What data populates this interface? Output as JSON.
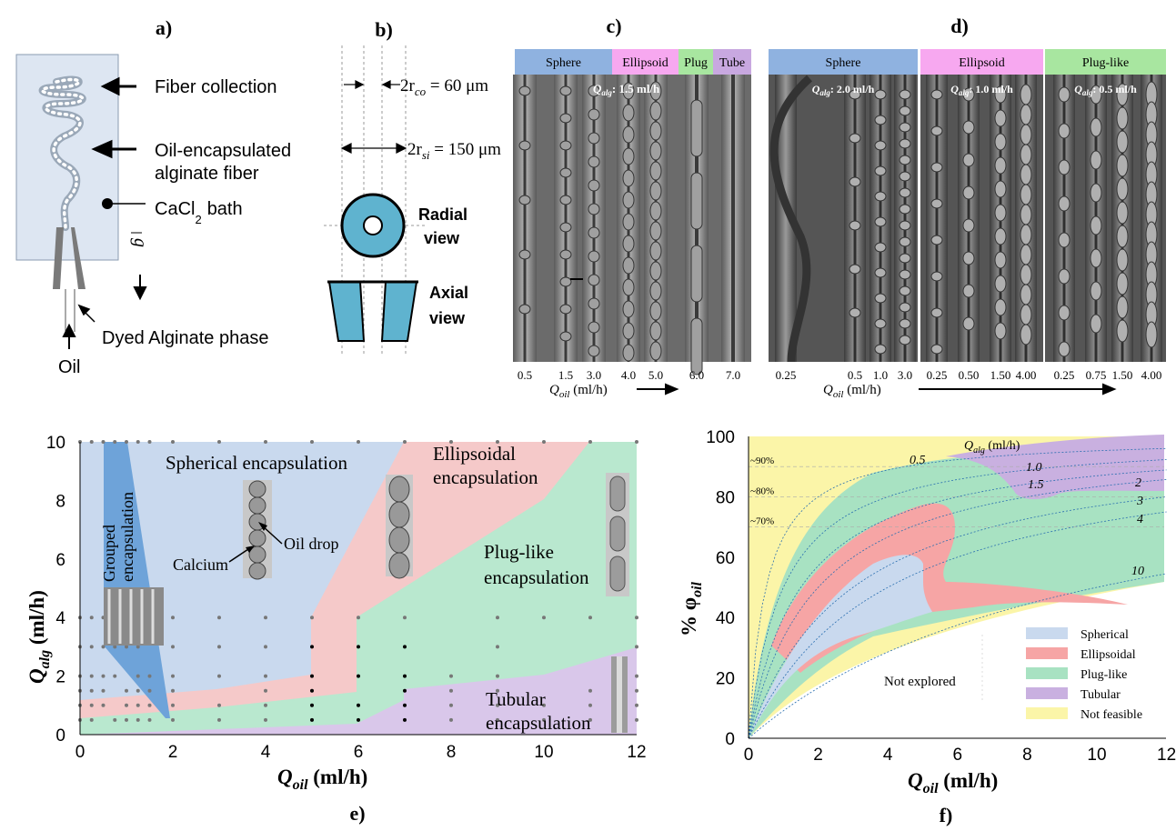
{
  "panels": {
    "a": {
      "letter": "a)",
      "labels": {
        "fiber_collection": "Fiber collection",
        "oil_encap_1": "Oil-encapsulated",
        "oil_encap_2": "alginate fiber",
        "cacl": "CaCl",
        "cacl_sub": "2",
        "cacl_tail": "bath",
        "g": "g",
        "dyed": "Dyed Alginate phase",
        "oil": "Oil"
      },
      "colors": {
        "bath": "#dde6f2",
        "nozzle": "#777777"
      }
    },
    "b": {
      "letter": "b)",
      "labels": {
        "rco_pre": "2r",
        "rco_sub": "co",
        "rco_val": " = 60 μm",
        "rsi_pre": "2r",
        "rsi_sub": "si",
        "rsi_val": " = 150 μm",
        "radial_1": "Radial",
        "radial_2": "view",
        "axial_1": "Axial",
        "axial_2": "view"
      },
      "colors": {
        "fill": "#5fb3cf"
      }
    },
    "c": {
      "letter": "c)",
      "regimes": [
        {
          "label": "Sphere",
          "color": "#8fb2e0"
        },
        {
          "label": "Ellipsoid",
          "color": "#f7a8f0"
        },
        {
          "label": "Plug",
          "color": "#a8e6a0"
        },
        {
          "label": "Tube",
          "color": "#c8a8e0"
        }
      ],
      "qalg_label": "Q",
      "qalg_sub": "alg",
      "qalg_value": ": 1.5 ml/h",
      "ticks": [
        "0.5",
        "1.5",
        "3.0",
        "4.0",
        "5.0",
        "6.0",
        "7.0"
      ],
      "axis_label": "Q",
      "axis_sub": "oil",
      "axis_unit": " (ml/h)"
    },
    "d": {
      "letter": "d)",
      "regimes": [
        {
          "label": "Sphere",
          "color": "#8fb2e0",
          "qalg_value": ": 2.0 ml/h"
        },
        {
          "label": "Ellipsoid",
          "color": "#f7a8f0",
          "qalg_value": ": 1.0 ml/h"
        },
        {
          "label": "Plug-like",
          "color": "#a8e6a0",
          "qalg_value": ": 0.5 ml/h"
        }
      ],
      "ticks": [
        [
          "0.25",
          "0.5",
          "1.0",
          "3.0"
        ],
        [
          "0.25",
          "0.50",
          "1.50",
          "4.00"
        ],
        [
          "0.25",
          "0.75",
          "1.50",
          "4.00"
        ]
      ],
      "axis_label": "Q",
      "axis_sub": "oil",
      "axis_unit": " (ml/h)"
    },
    "e": {
      "letter": "e)",
      "xlabel": "Q",
      "xlabel_sub": "oil",
      "xlabel_unit": " (ml/h)",
      "ylabel": "Q",
      "ylabel_sub": "alg",
      "ylabel_unit": " (ml/h)",
      "x_ticks": [
        "0",
        "2",
        "4",
        "6",
        "8",
        "10",
        "12"
      ],
      "y_ticks": [
        "0",
        "2",
        "4",
        "6",
        "8",
        "10"
      ],
      "region_labels": {
        "spherical": "Spherical encapsulation",
        "ellipsoidal_1": "Ellipsoidal",
        "ellipsoidal_2": "encapsulation",
        "plug_1": "Plug-like",
        "plug_2": "encapsulation",
        "tubular_1": "Tubular",
        "tubular_2": "encapsulation",
        "grouped_1": "Grouped",
        "grouped_2": "encapsulation",
        "calcium": "Calcium",
        "oil_drop": "Oil drop"
      },
      "colors": {
        "spherical": "#c9d9ee",
        "ellipsoidal": "#f5c9c9",
        "plug": "#b9e8cf",
        "tubular": "#d9c7ea",
        "grouped": "#6ea3d9"
      }
    },
    "f": {
      "letter": "f)",
      "xlabel": "Q",
      "xlabel_sub": "oil",
      "xlabel_unit": " (ml/h)",
      "ylabel": "% φ",
      "ylabel_sub": "oil",
      "x_ticks": [
        "0",
        "2",
        "4",
        "6",
        "8",
        "10",
        "12"
      ],
      "y_ticks": [
        "0",
        "20",
        "40",
        "60",
        "80",
        "100"
      ],
      "qalg_header": "Q",
      "qalg_header_sub": "alg",
      "qalg_header_unit": " (ml/h)",
      "curve_labels": [
        "0.5",
        "1.0",
        "1.5",
        "2",
        "3",
        "4",
        "10"
      ],
      "percent_labels": [
        "~90%",
        "~80%",
        "~70%"
      ],
      "not_explored": "Not explored",
      "legend": [
        {
          "label": "Spherical",
          "color": "#c9d9ee"
        },
        {
          "label": "Ellipsoidal",
          "color": "#f6a5a5"
        },
        {
          "label": "Plug-like",
          "color": "#a8e2c2"
        },
        {
          "label": "Tubular",
          "color": "#c9b0e0"
        },
        {
          "label": "Not feasible",
          "color": "#fbf5a8"
        }
      ]
    }
  }
}
